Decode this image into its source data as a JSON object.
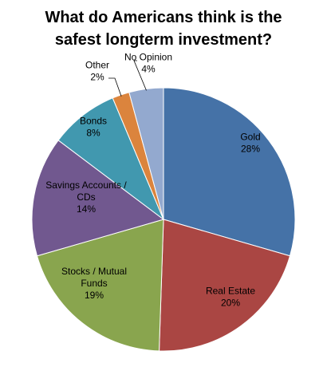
{
  "chart_data": {
    "type": "pie",
    "title_lines": [
      "What do Americans think is the",
      "safest longterm investment?"
    ],
    "categories": [
      "Gold",
      "Real Estate",
      "Stocks / Mutual Funds",
      "Savings Accounts / CDs",
      "Bonds",
      "Other",
      "No Opinion"
    ],
    "values": [
      28,
      20,
      19,
      14,
      8,
      2,
      4
    ],
    "value_labels": [
      "28%",
      "20%",
      "19%",
      "14%",
      "8%",
      "2%",
      "4%"
    ],
    "label_lines": [
      [
        "Gold",
        "28%"
      ],
      [
        "Real Estate",
        "20%"
      ],
      [
        "Stocks / Mutual",
        "Funds",
        "19%"
      ],
      [
        "Savings Accounts /",
        "CDs",
        "14%"
      ],
      [
        "Bonds",
        "8%"
      ],
      [
        "Other",
        "2%"
      ],
      [
        "No Opinion",
        "4%"
      ]
    ],
    "colors": [
      "#4572A7",
      "#AA4643",
      "#89A54E",
      "#71588F",
      "#4198AF",
      "#DB843D",
      "#93A9CF"
    ],
    "start_angle": "12 o'clock",
    "direction": "clockwise",
    "legend": "none"
  }
}
